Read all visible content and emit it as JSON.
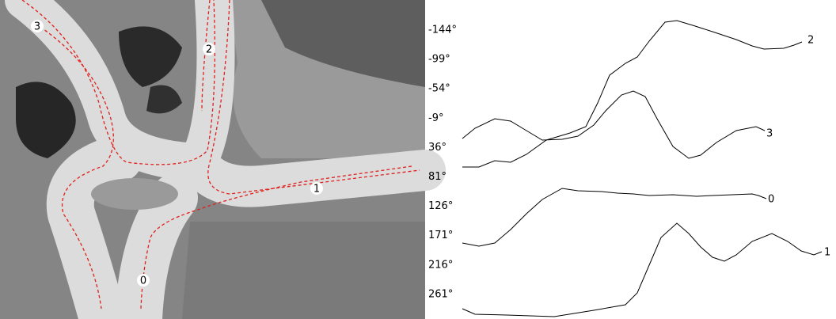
{
  "image_labels": [
    "3",
    "2",
    "1",
    "0"
  ],
  "angle_ticks": [
    "-144°",
    "-99°",
    "-54°",
    "-9°",
    "36°",
    "81°",
    "126°",
    "171°",
    "216°",
    "261°"
  ],
  "curve_labels": [
    "2",
    "3",
    "0",
    "1"
  ]
}
